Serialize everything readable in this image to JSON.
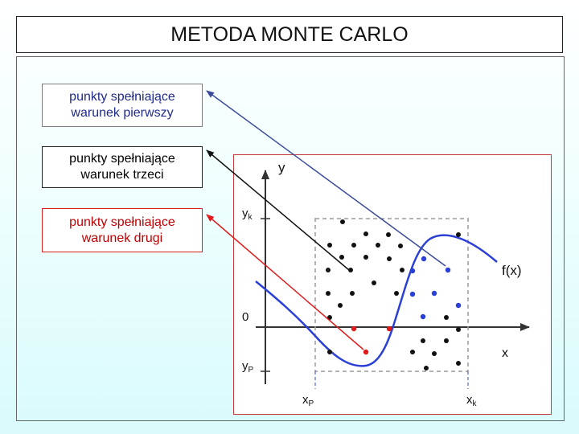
{
  "title": "METODA MONTE CARLO",
  "labels": [
    {
      "line1": "punkty spełniające",
      "line2": "warunek pierwszy"
    },
    {
      "line1": "punkty spełniające",
      "line2": "warunek trzeci"
    },
    {
      "line1": "punkty spełniające",
      "line2": "warunek drugi"
    }
  ],
  "plot": {
    "y_axis": "y",
    "x_axis": "x",
    "origin": "0",
    "yk": "y",
    "yk_sub": "k",
    "yp": "y",
    "yp_sub": "P",
    "xp": "x",
    "xp_sub": "P",
    "xk": "x",
    "xk_sub": "k",
    "curve": "f(x)"
  },
  "colors": {
    "blue": "#2a3fd6",
    "red": "#e01a1a",
    "black": "#111111",
    "navy_arrow": "#3b4a9a",
    "red_arrow": "#e01a1a"
  }
}
